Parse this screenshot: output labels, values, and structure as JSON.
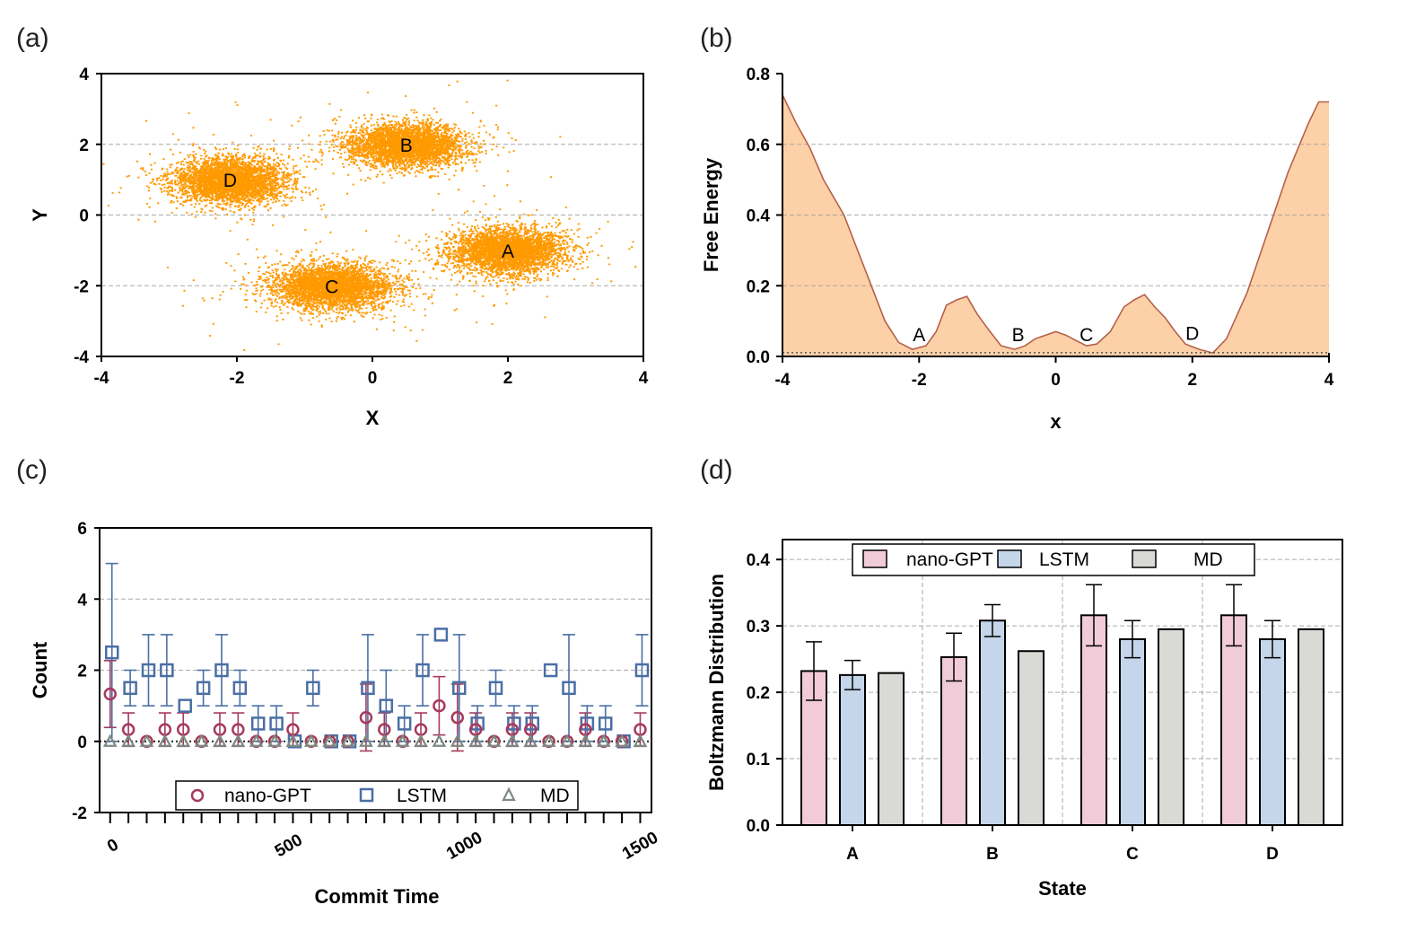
{
  "figure": {
    "panels": [
      "(a)",
      "(b)",
      "(c)",
      "(d)"
    ]
  },
  "chart_data": [
    {
      "id": "a",
      "type": "scatter",
      "label": "(a)",
      "xlabel": "X",
      "ylabel": "Y",
      "xlim": [
        -4,
        4
      ],
      "ylim": [
        -4,
        4
      ],
      "xticks": [
        -4,
        -2,
        0,
        2,
        4
      ],
      "yticks": [
        -4,
        -2,
        0,
        2,
        4
      ],
      "grid_y": [
        -2,
        0,
        2
      ],
      "color": "#ff9900",
      "clusters": [
        {
          "name": "A",
          "cx": 2.0,
          "cy": -1.0,
          "sx": 0.42,
          "sy": 0.32,
          "n": 3600
        },
        {
          "name": "B",
          "cx": 0.5,
          "cy": 2.0,
          "sx": 0.42,
          "sy": 0.3,
          "n": 3600
        },
        {
          "name": "C",
          "cx": -0.6,
          "cy": -2.0,
          "sx": 0.45,
          "sy": 0.32,
          "n": 3600
        },
        {
          "name": "D",
          "cx": -2.1,
          "cy": 1.0,
          "sx": 0.42,
          "sy": 0.32,
          "n": 3600
        }
      ]
    },
    {
      "id": "b",
      "type": "area",
      "label": "(b)",
      "xlabel": "x",
      "ylabel": "Free Energy",
      "xlim": [
        -4,
        4
      ],
      "ylim": [
        0,
        0.8
      ],
      "xticks": [
        -4,
        -2,
        0,
        2,
        4
      ],
      "yticks": [
        "0.0",
        "0.2",
        "0.4",
        "0.6",
        "0.8"
      ],
      "grid_y": [
        0.2,
        0.4,
        0.6
      ],
      "fill": "#fdd1a8",
      "line": "#b5604a",
      "x": [
        -4.0,
        -3.8,
        -3.6,
        -3.4,
        -3.1,
        -2.8,
        -2.5,
        -2.3,
        -2.1,
        -1.9,
        -1.75,
        -1.6,
        -1.45,
        -1.3,
        -1.15,
        -1.0,
        -0.8,
        -0.6,
        -0.45,
        -0.3,
        -0.15,
        0.0,
        0.15,
        0.3,
        0.45,
        0.6,
        0.8,
        1.0,
        1.15,
        1.3,
        1.45,
        1.6,
        1.75,
        1.9,
        2.1,
        2.3,
        2.5,
        2.8,
        3.1,
        3.4,
        3.7,
        3.85,
        4.0
      ],
      "y": [
        0.74,
        0.66,
        0.59,
        0.5,
        0.4,
        0.25,
        0.1,
        0.04,
        0.02,
        0.03,
        0.07,
        0.145,
        0.16,
        0.17,
        0.12,
        0.08,
        0.03,
        0.02,
        0.03,
        0.05,
        0.06,
        0.07,
        0.06,
        0.045,
        0.03,
        0.035,
        0.07,
        0.14,
        0.16,
        0.175,
        0.14,
        0.11,
        0.07,
        0.035,
        0.02,
        0.01,
        0.05,
        0.18,
        0.35,
        0.52,
        0.66,
        0.72,
        0.72
      ],
      "labels": [
        {
          "text": "A",
          "x": -2.0,
          "y": 0.035
        },
        {
          "text": "B",
          "x": -0.55,
          "y": 0.035
        },
        {
          "text": "C",
          "x": 0.45,
          "y": 0.035
        },
        {
          "text": "D",
          "x": 2.0,
          "y": 0.04
        }
      ]
    },
    {
      "id": "c",
      "type": "scatter",
      "label": "(c)",
      "xlabel": "Commit Time",
      "ylabel": "Count",
      "xlim": [
        -30,
        1540
      ],
      "ylim": [
        -2,
        6
      ],
      "xticks": [
        0,
        500,
        1000,
        1500
      ],
      "yticks": [
        -2,
        0,
        2,
        4,
        6
      ],
      "grid_y": [
        2,
        4
      ],
      "x": [
        0,
        52,
        104,
        156,
        208,
        260,
        312,
        364,
        416,
        468,
        520,
        572,
        624,
        676,
        728,
        780,
        832,
        884,
        936,
        988,
        1040,
        1092,
        1144,
        1196,
        1248,
        1300,
        1352,
        1404,
        1456,
        1508
      ],
      "legend": [
        "nano-GPT",
        "LSTM",
        "MD"
      ],
      "series": [
        {
          "name": "nano-GPT",
          "color": "#a63a5c",
          "values": [
            1.33,
            0.33,
            0,
            0.33,
            0.33,
            0,
            0.33,
            0.33,
            0,
            0,
            0.33,
            0,
            0,
            0,
            0.67,
            0.33,
            0,
            0.33,
            1.0,
            0.67,
            0.33,
            0,
            0.33,
            0.33,
            0,
            0,
            0.33,
            0,
            0,
            0.33
          ],
          "err": [
            0.94,
            0.47,
            0,
            0.47,
            0.47,
            0,
            0.47,
            0.47,
            0,
            0,
            0.47,
            0,
            0,
            0,
            0.94,
            0.47,
            0,
            0.47,
            0.82,
            0.94,
            0.47,
            0,
            0.47,
            0.47,
            0,
            0,
            0.47,
            0,
            0,
            0.47
          ]
        },
        {
          "name": "LSTM",
          "color": "#4a6fa5",
          "values": [
            2.5,
            1.5,
            2.0,
            2.0,
            1.0,
            1.5,
            2.0,
            1.5,
            0.5,
            0.5,
            0,
            1.5,
            0,
            0,
            1.5,
            1.0,
            0.5,
            2.0,
            3.0,
            1.5,
            0.5,
            1.5,
            0.5,
            0.5,
            2.0,
            1.5,
            0.5,
            0.5,
            0,
            2.0
          ],
          "err": [
            2.5,
            0.5,
            1.0,
            1.0,
            0,
            0.5,
            1.0,
            0.5,
            0.5,
            0.5,
            0,
            0.5,
            0,
            0,
            1.5,
            1.0,
            0.5,
            1.0,
            0,
            1.5,
            0.5,
            0.5,
            0.5,
            0.5,
            0,
            1.5,
            0.5,
            0.5,
            0,
            1.0
          ]
        },
        {
          "name": "MD",
          "color": "#7d8b80",
          "values": [
            0,
            0,
            0,
            0,
            0,
            0,
            0,
            0,
            0,
            0,
            0,
            0,
            0,
            0,
            0,
            0,
            0,
            0,
            0,
            0,
            0,
            0,
            0,
            0,
            0,
            0,
            0,
            0,
            0,
            0
          ]
        }
      ]
    },
    {
      "id": "d",
      "type": "bar",
      "label": "(d)",
      "xlabel": "State",
      "ylabel": "Boltzmann Distribution",
      "ylim": [
        0,
        0.43
      ],
      "yticks": [
        "0.0",
        "0.1",
        "0.2",
        "0.3",
        "0.4"
      ],
      "categories": [
        "A",
        "B",
        "C",
        "D"
      ],
      "legend": [
        "nano-GPT",
        "LSTM",
        "MD"
      ],
      "series": [
        {
          "name": "nano-GPT",
          "color": "#f1cbd8",
          "values": [
            0.232,
            0.253,
            0.316,
            0.316
          ],
          "err": [
            0.044,
            0.036,
            0.046,
            0.046
          ]
        },
        {
          "name": "LSTM",
          "color": "#c5d6ea",
          "values": [
            0.226,
            0.308,
            0.28,
            0.28
          ],
          "err": [
            0.022,
            0.024,
            0.028,
            0.028
          ]
        },
        {
          "name": "MD",
          "color": "#d9d9d6",
          "values": [
            0.229,
            0.262,
            0.295,
            0.295
          ]
        }
      ]
    }
  ]
}
